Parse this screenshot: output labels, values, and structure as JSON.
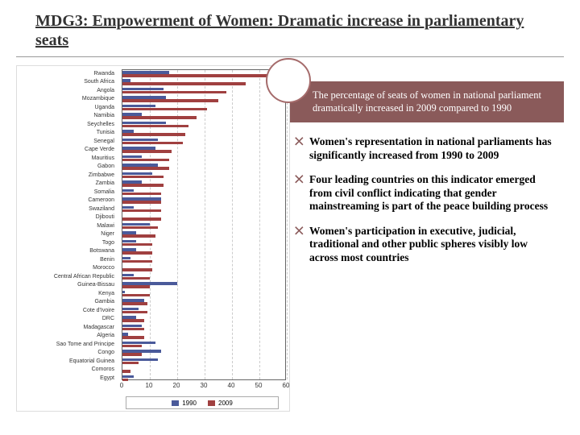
{
  "title": "MDG3: Empowerment of Women: Dramatic increase in parliamentary seats",
  "callout": "The percentage of seats of women in national parliament dramatically increased in 2009 compared to 1990",
  "bullets": [
    "Women's representation in national parliaments has significantly increased from 1990 to 2009",
    "Four leading countries on this indicator emerged from civil conflict indicating that gender mainstreaming is part of the peace building process",
    "Women's participation in executive, judicial, traditional and other public spheres visibly low across most countries"
  ],
  "chart": {
    "type": "horizontal-bar-grouped",
    "xlim": [
      0,
      60
    ],
    "xtick_step": 10,
    "xticks": [
      0,
      10,
      20,
      30,
      40,
      50,
      60
    ],
    "grid_color": "#cccccc",
    "border_color": "#666666",
    "background_color": "#ffffff",
    "label_fontsize": 7,
    "tick_fontsize": 8,
    "series": [
      {
        "name": "1990",
        "color": "#4a5a9a"
      },
      {
        "name": "2009",
        "color": "#a04040"
      }
    ],
    "countries": [
      {
        "name": "Rwanda",
        "v1990": 17,
        "v2009": 56
      },
      {
        "name": "South Africa",
        "v1990": 3,
        "v2009": 45
      },
      {
        "name": "Angola",
        "v1990": 15,
        "v2009": 38
      },
      {
        "name": "Mozambique",
        "v1990": 16,
        "v2009": 35
      },
      {
        "name": "Uganda",
        "v1990": 12,
        "v2009": 31
      },
      {
        "name": "Namibia",
        "v1990": 7,
        "v2009": 27
      },
      {
        "name": "Seychelles",
        "v1990": 16,
        "v2009": 24
      },
      {
        "name": "Tunisia",
        "v1990": 4,
        "v2009": 23
      },
      {
        "name": "Senegal",
        "v1990": 13,
        "v2009": 22
      },
      {
        "name": "Cape Verde",
        "v1990": 12,
        "v2009": 18
      },
      {
        "name": "Mauritius",
        "v1990": 7,
        "v2009": 17
      },
      {
        "name": "Gabon",
        "v1990": 13,
        "v2009": 17
      },
      {
        "name": "Zimbabwe",
        "v1990": 11,
        "v2009": 15
      },
      {
        "name": "Zambia",
        "v1990": 7,
        "v2009": 15
      },
      {
        "name": "Somalia",
        "v1990": 4,
        "v2009": 14
      },
      {
        "name": "Cameroon",
        "v1990": 14,
        "v2009": 14
      },
      {
        "name": "Swaziland",
        "v1990": 4,
        "v2009": 14
      },
      {
        "name": "Djibouti",
        "v1990": 0,
        "v2009": 14
      },
      {
        "name": "Malawi",
        "v1990": 10,
        "v2009": 13
      },
      {
        "name": "Niger",
        "v1990": 5,
        "v2009": 12
      },
      {
        "name": "Togo",
        "v1990": 5,
        "v2009": 11
      },
      {
        "name": "Botswana",
        "v1990": 5,
        "v2009": 11
      },
      {
        "name": "Benin",
        "v1990": 3,
        "v2009": 11
      },
      {
        "name": "Morocco",
        "v1990": 0,
        "v2009": 11
      },
      {
        "name": "Central African Republic",
        "v1990": 4,
        "v2009": 10
      },
      {
        "name": "Guinea-Bissau",
        "v1990": 20,
        "v2009": 10
      },
      {
        "name": "Kenya",
        "v1990": 1,
        "v2009": 10
      },
      {
        "name": "Gambia",
        "v1990": 8,
        "v2009": 9
      },
      {
        "name": "Cote d'Ivoire",
        "v1990": 6,
        "v2009": 9
      },
      {
        "name": "DRC",
        "v1990": 5,
        "v2009": 8
      },
      {
        "name": "Madagascar",
        "v1990": 7,
        "v2009": 8
      },
      {
        "name": "Algeria",
        "v1990": 2,
        "v2009": 8
      },
      {
        "name": "Sao Tome and Principe",
        "v1990": 12,
        "v2009": 7
      },
      {
        "name": "Congo",
        "v1990": 14,
        "v2009": 7
      },
      {
        "name": "Equatorial Guinea",
        "v1990": 13,
        "v2009": 6
      },
      {
        "name": "Comoros",
        "v1990": 0,
        "v2009": 3
      },
      {
        "name": "Egypt",
        "v1990": 4,
        "v2009": 2
      }
    ]
  },
  "colors": {
    "accent": "#8a5a5a",
    "circle_border": "#a56b6b",
    "slide_bg": "#ffffff"
  }
}
